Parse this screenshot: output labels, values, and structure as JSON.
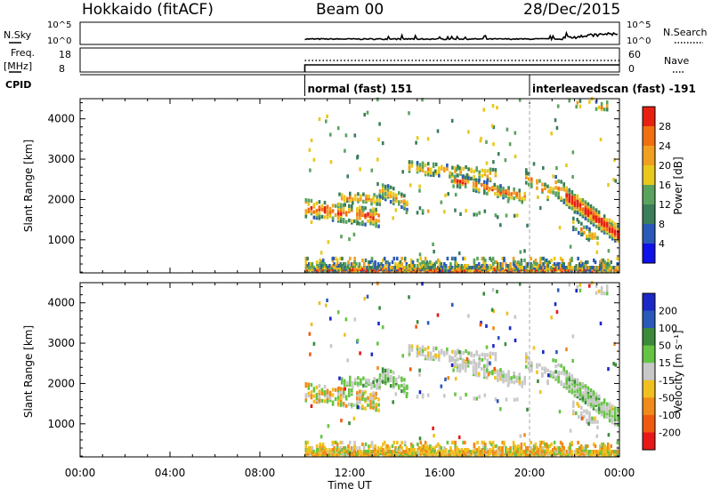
{
  "header": {
    "station": "Hokkaido (fitACF)",
    "beam": "Beam 00",
    "date": "28/Dec/2015"
  },
  "top_panels": {
    "nsky_label": "N.Sky",
    "nsky_ticks": [
      "10^5",
      "10^0"
    ],
    "nsearch_label": "N.Search",
    "nsearch_ticks": [
      "10^5",
      "10^0"
    ],
    "freq_label": "Freq.",
    "freq_unit": "[MHz]",
    "freq_ticks": [
      "18",
      "8"
    ],
    "nave_label": "Nave",
    "nave_ticks": [
      "60",
      "0"
    ],
    "cpid_label": "CPID",
    "cpid_segments": [
      {
        "label": "normal (fast) 151",
        "start_hour": 10.0
      },
      {
        "label": "interleavedscan (fast) -191",
        "start_hour": 20.0
      }
    ]
  },
  "chart_data": [
    {
      "type": "heatmap",
      "name": "power",
      "ylabel": "Slant Range [km]",
      "xlabel": "",
      "yticks": [
        1000,
        2000,
        3000,
        4000
      ],
      "ylim": [
        180,
        4500
      ],
      "xlim": [
        0,
        24
      ],
      "colorbar": {
        "label": "Power [dB]",
        "ticks": [
          "4",
          "8",
          "12",
          "16",
          "20",
          "24",
          "28"
        ],
        "colors": [
          "#1010e8",
          "#2a5ab8",
          "#3a7e5a",
          "#5aa35e",
          "#e8c81a",
          "#f0a020",
          "#f07010",
          "#e82010"
        ]
      }
    },
    {
      "type": "heatmap",
      "name": "velocity",
      "ylabel": "Slant Range [km]",
      "xlabel": "Time UT",
      "xticks": [
        "00:00",
        "04:00",
        "08:00",
        "12:00",
        "16:00",
        "20:00",
        "00:00"
      ],
      "yticks": [
        1000,
        2000,
        3000,
        4000
      ],
      "ylim": [
        180,
        4500
      ],
      "xlim": [
        0,
        24
      ],
      "colorbar": {
        "label": "Velocity [m s⁻¹]",
        "ticks": [
          "200",
          "100",
          "50",
          "15",
          "-15",
          "-50",
          "-100",
          "-200"
        ],
        "colors": [
          "#1a28c8",
          "#2a5ab8",
          "#3a8a3a",
          "#66c444",
          "#c8c8c8",
          "#f0c020",
          "#f08a18",
          "#f05a10",
          "#e81818"
        ]
      }
    }
  ]
}
